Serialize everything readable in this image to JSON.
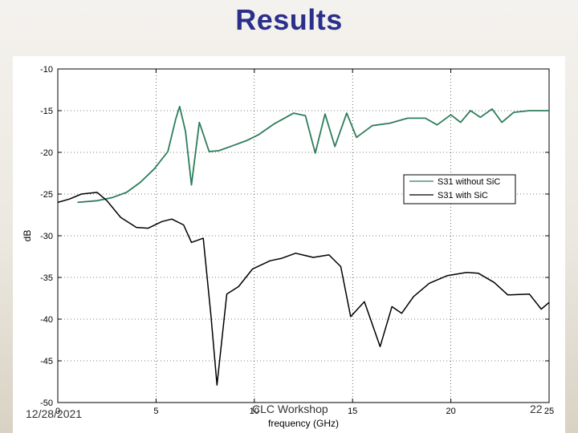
{
  "slide": {
    "title": "Results",
    "footer_date": "12/28/2021",
    "footer_center": "CLC Workshop",
    "page_number": "22"
  },
  "colors": {
    "title": "#2b2f8c",
    "series_without": "#2e7d5b",
    "series_with": "#000000"
  },
  "chart_data": {
    "type": "line",
    "title": "",
    "xlabel": "frequency (GHz)",
    "ylabel": "dB",
    "xlim": [
      0,
      25
    ],
    "ylim": [
      -50,
      -10
    ],
    "xticks": [
      0,
      5,
      10,
      15,
      20,
      25
    ],
    "yticks": [
      -10,
      -15,
      -20,
      -25,
      -30,
      -35,
      -40,
      -45,
      -50
    ],
    "grid": true,
    "legend_position": "right",
    "series": [
      {
        "name": "S31 without SiC",
        "color": "#2e7d5b",
        "points": [
          [
            1.0,
            -26.0
          ],
          [
            2.0,
            -25.8
          ],
          [
            2.8,
            -25.4
          ],
          [
            3.5,
            -24.8
          ],
          [
            4.2,
            -23.6
          ],
          [
            4.9,
            -22.0
          ],
          [
            5.6,
            -19.9
          ],
          [
            6.0,
            -16.0
          ],
          [
            6.2,
            -14.5
          ],
          [
            6.5,
            -17.5
          ],
          [
            6.8,
            -23.9
          ],
          [
            7.2,
            -16.4
          ],
          [
            7.7,
            -19.9
          ],
          [
            8.2,
            -19.8
          ],
          [
            8.9,
            -19.2
          ],
          [
            9.6,
            -18.6
          ],
          [
            10.2,
            -17.9
          ],
          [
            11.0,
            -16.6
          ],
          [
            12.0,
            -15.3
          ],
          [
            12.6,
            -15.6
          ],
          [
            13.1,
            -20.1
          ],
          [
            13.6,
            -15.4
          ],
          [
            14.1,
            -19.3
          ],
          [
            14.7,
            -15.3
          ],
          [
            15.2,
            -18.2
          ],
          [
            16.0,
            -16.8
          ],
          [
            16.9,
            -16.5
          ],
          [
            17.8,
            -15.9
          ],
          [
            18.7,
            -15.9
          ],
          [
            19.3,
            -16.7
          ],
          [
            20.0,
            -15.5
          ],
          [
            20.5,
            -16.4
          ],
          [
            21.0,
            -15.0
          ],
          [
            21.5,
            -15.8
          ],
          [
            22.1,
            -14.8
          ],
          [
            22.6,
            -16.4
          ],
          [
            23.2,
            -15.2
          ],
          [
            24.0,
            -15.0
          ],
          [
            25.0,
            -15.0
          ]
        ]
      },
      {
        "name": "S31 with SiC",
        "color": "#000000",
        "points": [
          [
            0.0,
            -26.0
          ],
          [
            0.6,
            -25.6
          ],
          [
            1.2,
            -25.0
          ],
          [
            2.0,
            -24.8
          ],
          [
            2.5,
            -25.8
          ],
          [
            3.2,
            -27.8
          ],
          [
            4.0,
            -29.0
          ],
          [
            4.6,
            -29.1
          ],
          [
            5.3,
            -28.3
          ],
          [
            5.8,
            -28.0
          ],
          [
            6.4,
            -28.7
          ],
          [
            6.8,
            -30.8
          ],
          [
            7.4,
            -30.3
          ],
          [
            7.8,
            -39.7
          ],
          [
            8.1,
            -47.9
          ],
          [
            8.6,
            -37.0
          ],
          [
            9.2,
            -36.1
          ],
          [
            9.9,
            -34.0
          ],
          [
            10.8,
            -33.0
          ],
          [
            11.4,
            -32.7
          ],
          [
            12.1,
            -32.1
          ],
          [
            13.0,
            -32.6
          ],
          [
            13.8,
            -32.3
          ],
          [
            14.4,
            -33.7
          ],
          [
            14.9,
            -39.7
          ],
          [
            15.6,
            -37.9
          ],
          [
            16.4,
            -43.3
          ],
          [
            17.0,
            -38.5
          ],
          [
            17.5,
            -39.3
          ],
          [
            18.1,
            -37.3
          ],
          [
            18.9,
            -35.7
          ],
          [
            19.8,
            -34.8
          ],
          [
            20.8,
            -34.4
          ],
          [
            21.4,
            -34.5
          ],
          [
            22.2,
            -35.6
          ],
          [
            22.9,
            -37.1
          ],
          [
            24.0,
            -37.0
          ],
          [
            24.6,
            -38.8
          ],
          [
            25.0,
            -38.0
          ]
        ]
      }
    ]
  }
}
